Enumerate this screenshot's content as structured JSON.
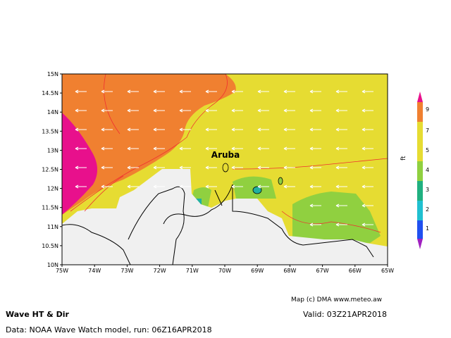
{
  "map": {
    "title": "Wave HT & Dir",
    "valid": "Valid: 03Z21APR2018",
    "source": "Data: NOAA Wave Watch model, run: 06Z16APR2018",
    "credit": "Map (c) DMA www.meteo.aw",
    "place_label": "Aruba",
    "lat_labels": [
      "15N",
      "14.5N",
      "14N",
      "13.5N",
      "13N",
      "12.5N",
      "12N",
      "11.5N",
      "11N",
      "10.5N",
      "10N"
    ],
    "lon_labels": [
      "75W",
      "74W",
      "73W",
      "72W",
      "71W",
      "70W",
      "69W",
      "68W",
      "67W",
      "66W",
      "65W"
    ],
    "legend": {
      "unit": "ft",
      "labels": [
        "1",
        "2",
        "3",
        "4",
        "5",
        "7",
        "9"
      ]
    }
  }
}
